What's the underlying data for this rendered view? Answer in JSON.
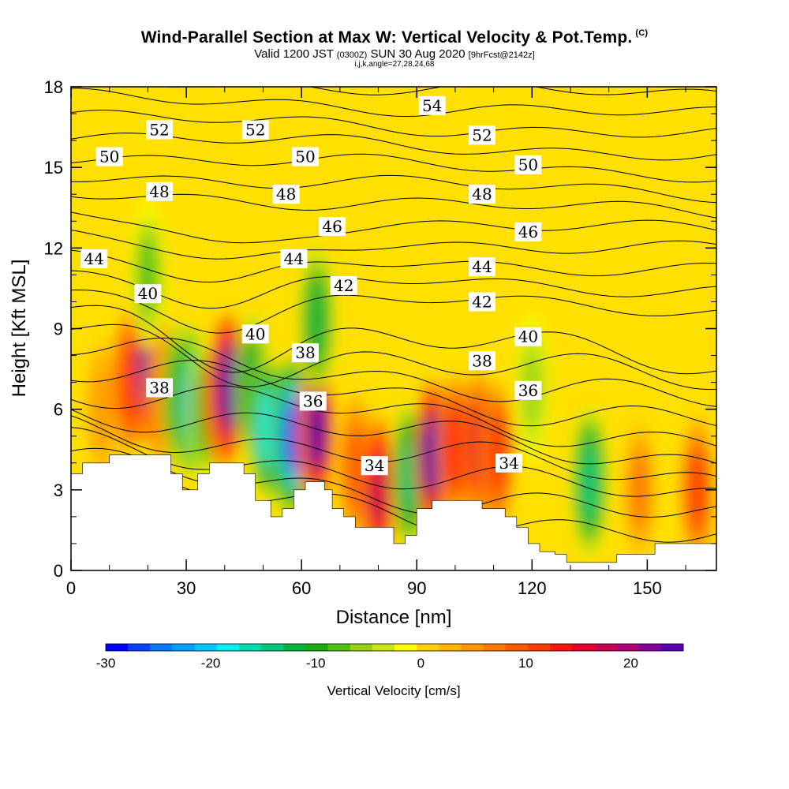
{
  "header": {
    "title": "Wind-Parallel Section at Max W: Vertical Velocity & Pot.Temp.",
    "copyright": "(C)",
    "valid_prefix": "Valid 1200 JST",
    "valid_utc": "(0300Z)",
    "valid_date": "SUN 30 Aug 2020",
    "forecast": "[9hrFcst@2142z]",
    "indices": "i,j,k,angle=27,28,24,68"
  },
  "colors": {
    "background_fill": "#ffe000",
    "terrain": "#ffffff",
    "contour_line": "#000000",
    "colorbar": [
      "#0000ff",
      "#0a40ff",
      "#0a78ff",
      "#00a0ff",
      "#00c8ff",
      "#00f0f0",
      "#00dcaa",
      "#00c878",
      "#00b43c",
      "#1eaa14",
      "#50be14",
      "#96d214",
      "#c8e614",
      "#ffff00",
      "#ffd200",
      "#ffb400",
      "#ff9600",
      "#ff7800",
      "#ff5a00",
      "#ff3c00",
      "#ff1414",
      "#e6002d",
      "#c80050",
      "#aa0078",
      "#820096",
      "#5a00aa"
    ]
  },
  "chart_data": {
    "type": "heatmap",
    "title": "Wind-Parallel Section at Max W: Vertical Velocity & Pot.Temp.",
    "xlabel": "Distance [nm]",
    "ylabel": "Height [Kft MSL]",
    "xlim": [
      0,
      168
    ],
    "ylim": [
      0,
      18
    ],
    "xticks": [
      0,
      30,
      60,
      90,
      120,
      150
    ],
    "yticks": [
      0,
      3,
      6,
      9,
      12,
      15,
      18
    ],
    "colorbar": {
      "label": "Vertical Velocity [cm/s]",
      "range": [
        -30,
        25
      ],
      "ticks": [
        -30,
        -20,
        -10,
        0,
        10,
        20
      ]
    },
    "terrain_height_kft": [
      [
        0,
        3.6
      ],
      [
        3,
        3.6
      ],
      [
        3,
        4.0
      ],
      [
        10,
        4.0
      ],
      [
        10,
        4.3
      ],
      [
        26,
        4.3
      ],
      [
        26,
        3.6
      ],
      [
        29,
        3.6
      ],
      [
        29,
        3.0
      ],
      [
        33,
        3.0
      ],
      [
        33,
        3.6
      ],
      [
        36,
        3.6
      ],
      [
        36,
        4.0
      ],
      [
        45,
        4.0
      ],
      [
        45,
        3.6
      ],
      [
        48,
        3.6
      ],
      [
        48,
        2.6
      ],
      [
        52,
        2.6
      ],
      [
        52,
        2.0
      ],
      [
        55,
        2.0
      ],
      [
        55,
        2.3
      ],
      [
        58,
        2.3
      ],
      [
        58,
        3.0
      ],
      [
        61,
        3.0
      ],
      [
        61,
        3.3
      ],
      [
        66,
        3.3
      ],
      [
        66,
        3.0
      ],
      [
        68,
        3.0
      ],
      [
        68,
        2.3
      ],
      [
        71,
        2.3
      ],
      [
        71,
        2.0
      ],
      [
        74,
        2.0
      ],
      [
        74,
        1.6
      ],
      [
        84,
        1.6
      ],
      [
        84,
        1.0
      ],
      [
        87,
        1.0
      ],
      [
        87,
        1.3
      ],
      [
        90,
        1.3
      ],
      [
        90,
        2.3
      ],
      [
        94,
        2.3
      ],
      [
        94,
        2.6
      ],
      [
        107,
        2.6
      ],
      [
        107,
        2.3
      ],
      [
        113,
        2.3
      ],
      [
        113,
        2.0
      ],
      [
        116,
        2.0
      ],
      [
        116,
        1.6
      ],
      [
        119,
        1.6
      ],
      [
        119,
        1.0
      ],
      [
        122,
        1.0
      ],
      [
        122,
        0.7
      ],
      [
        126,
        0.7
      ],
      [
        126,
        0.6
      ],
      [
        129,
        0.6
      ],
      [
        129,
        0.3
      ],
      [
        142,
        0.3
      ],
      [
        142,
        0.6
      ],
      [
        152,
        0.6
      ],
      [
        152,
        1.0
      ],
      [
        168,
        1.0
      ]
    ],
    "vertical_velocity_cells": [
      {
        "x": 8,
        "z": 6.0,
        "w": 5
      },
      {
        "x": 15,
        "z": 7.0,
        "w": 12
      },
      {
        "x": 20,
        "z": 7.5,
        "w": 24
      },
      {
        "x": 24,
        "z": 6.5,
        "w": 8
      },
      {
        "x": 28,
        "z": 6.5,
        "w": -12
      },
      {
        "x": 32,
        "z": 6.2,
        "w": -22
      },
      {
        "x": 35,
        "z": 6.0,
        "w": -10
      },
      {
        "x": 39,
        "z": 6.5,
        "w": 16
      },
      {
        "x": 41,
        "z": 6.8,
        "w": 25
      },
      {
        "x": 47,
        "z": 6.8,
        "w": -12
      },
      {
        "x": 51,
        "z": 5.3,
        "w": -18
      },
      {
        "x": 56,
        "z": 5.0,
        "w": -24
      },
      {
        "x": 58,
        "z": 5.0,
        "w": -28
      },
      {
        "x": 63,
        "z": 5.0,
        "w": 18
      },
      {
        "x": 64,
        "z": 5.2,
        "w": 23
      },
      {
        "x": 64,
        "z": 9.3,
        "w": -12
      },
      {
        "x": 20,
        "z": 11.0,
        "w": -7
      },
      {
        "x": 74,
        "z": 3.8,
        "w": 10
      },
      {
        "x": 80,
        "z": 3.0,
        "w": 18
      },
      {
        "x": 88,
        "z": 3.5,
        "w": -14
      },
      {
        "x": 94,
        "z": 4.3,
        "w": 24
      },
      {
        "x": 100,
        "z": 4.6,
        "w": 14
      },
      {
        "x": 106,
        "z": 4.6,
        "w": 16
      },
      {
        "x": 111,
        "z": 4.3,
        "w": 12
      },
      {
        "x": 120,
        "z": 6.8,
        "w": -6
      },
      {
        "x": 135,
        "z": 3.3,
        "w": -15
      },
      {
        "x": 148,
        "z": 3.0,
        "w": 6
      },
      {
        "x": 163,
        "z": 3.0,
        "w": 11
      }
    ],
    "potential_temperature_labels": [
      {
        "text": "52",
        "x": 23,
        "z": 16.4
      },
      {
        "text": "52",
        "x": 48,
        "z": 16.4
      },
      {
        "text": "54",
        "x": 94,
        "z": 17.3
      },
      {
        "text": "52",
        "x": 107,
        "z": 16.2
      },
      {
        "text": "50",
        "x": 10,
        "z": 15.4
      },
      {
        "text": "50",
        "x": 61,
        "z": 15.4
      },
      {
        "text": "50",
        "x": 119,
        "z": 15.1
      },
      {
        "text": "48",
        "x": 23,
        "z": 14.1
      },
      {
        "text": "48",
        "x": 56,
        "z": 14.0
      },
      {
        "text": "48",
        "x": 107,
        "z": 14.0
      },
      {
        "text": "46",
        "x": 68,
        "z": 12.8
      },
      {
        "text": "46",
        "x": 119,
        "z": 12.6
      },
      {
        "text": "44",
        "x": 6,
        "z": 11.6
      },
      {
        "text": "44",
        "x": 58,
        "z": 11.6
      },
      {
        "text": "44",
        "x": 107,
        "z": 11.3
      },
      {
        "text": "40",
        "x": 20,
        "z": 10.3
      },
      {
        "text": "42",
        "x": 71,
        "z": 10.6
      },
      {
        "text": "42",
        "x": 107,
        "z": 10.0
      },
      {
        "text": "40",
        "x": 48,
        "z": 8.8
      },
      {
        "text": "40",
        "x": 119,
        "z": 8.7
      },
      {
        "text": "38",
        "x": 61,
        "z": 8.1
      },
      {
        "text": "38",
        "x": 107,
        "z": 7.8
      },
      {
        "text": "38",
        "x": 23,
        "z": 6.8
      },
      {
        "text": "36",
        "x": 63,
        "z": 6.3
      },
      {
        "text": "36",
        "x": 119,
        "z": 6.7
      },
      {
        "text": "34",
        "x": 79,
        "z": 3.9
      },
      {
        "text": "34",
        "x": 114,
        "z": 4.0
      }
    ]
  }
}
